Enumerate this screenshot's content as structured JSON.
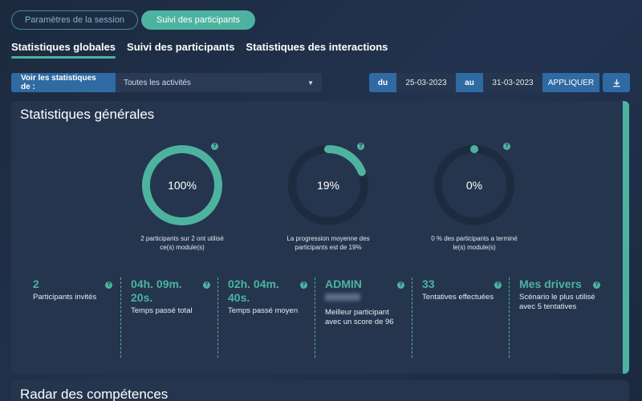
{
  "top_tabs": [
    {
      "label": "Paramètres de la session",
      "active": false
    },
    {
      "label": "Suivi des participants",
      "active": true
    }
  ],
  "sub_tabs": [
    {
      "label": "Statistiques globales",
      "active": true
    },
    {
      "label": "Suivi des participants",
      "active": false
    },
    {
      "label": "Statistiques des interactions",
      "active": false
    }
  ],
  "filter": {
    "label": "Voir les statistiques de :",
    "value": "Toutes les activités"
  },
  "dates": {
    "from_label": "du",
    "from": "25-03-2023",
    "to_label": "au",
    "to": "31-03-2023",
    "apply_label": "APPLIQUER"
  },
  "general": {
    "title": "Statistiques générales",
    "donuts": [
      {
        "value": "100%",
        "fraction": 1.0,
        "caption_line1": "2 participants sur 2 ont utilisé",
        "caption_line2": "ce(s) module(s)"
      },
      {
        "value": "19%",
        "fraction": 0.19,
        "caption_line1": "La progression moyenne des",
        "caption_line2": "participants est de 19%"
      },
      {
        "value": "0%",
        "fraction": 0.0,
        "caption_line1": "0 % des participants a terminé",
        "caption_line2": "le(s) module(s)"
      }
    ],
    "stats": [
      {
        "value_line1": "2",
        "value_line2": "",
        "label_line1": "Participants invités",
        "label_line2": ""
      },
      {
        "value_line1": "04h. 09m.",
        "value_line2": "20s.",
        "label_line1": "Temps passé total",
        "label_line2": ""
      },
      {
        "value_line1": "02h. 04m.",
        "value_line2": "40s.",
        "label_line1": "Temps passé moyen",
        "label_line2": ""
      },
      {
        "value_line1": "ADMIN",
        "value_line2": "",
        "label_line1": "Meilleur participant",
        "label_line2": "avec un score de 96"
      },
      {
        "value_line1": "33",
        "value_line2": "",
        "label_line1": "Tentatives effectuées",
        "label_line2": ""
      },
      {
        "value_line1": "Mes drivers",
        "value_line2": "",
        "label_line1": "Scénario le plus utilisé",
        "label_line2": "avec 5 tentatives"
      }
    ]
  },
  "radar": {
    "title": "Radar des compétences"
  },
  "colors": {
    "accent": "#4db3a0",
    "primary": "#2f6aa3",
    "track": "#1e2b3f"
  },
  "icons": {
    "help": "help-icon",
    "download": "download-icon",
    "caret": "chevron-down-icon"
  }
}
